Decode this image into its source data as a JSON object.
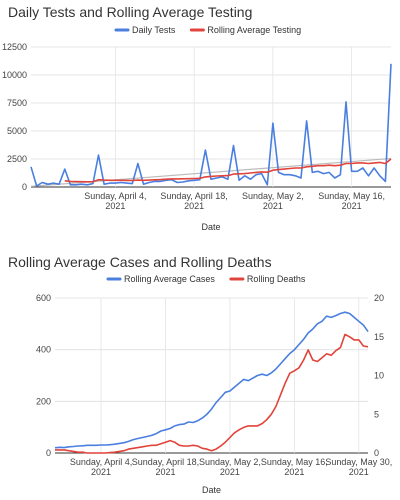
{
  "chart_data": [
    {
      "type": "line",
      "title": "Daily Tests and Rolling Average Testing",
      "xlabel": "Date",
      "ylabel": "",
      "ylim": [
        0,
        12500
      ],
      "yticks": [
        0,
        2500,
        5000,
        7500,
        10000,
        12500
      ],
      "ytick_labels": [
        "0",
        "2500",
        "5000",
        "7500",
        "10000",
        "12500"
      ],
      "x_start": "2021-03-20",
      "x_end": "2021-05-29",
      "xticks": [
        {
          "date": "2021-04-04",
          "label": "Sunday, April 4,",
          "label2": "2021"
        },
        {
          "date": "2021-04-18",
          "label": "Sunday, April 18,",
          "label2": "2021"
        },
        {
          "date": "2021-05-02",
          "label": "Sunday, May 2,",
          "label2": "2021"
        },
        {
          "date": "2021-05-16",
          "label": "Sunday, May 16,",
          "label2": "2021"
        }
      ],
      "legend_position": "top",
      "series": [
        {
          "name": "Daily Tests",
          "color": "#4a7fe0",
          "values": [
            1800,
            100,
            400,
            250,
            350,
            250,
            1600,
            200,
            200,
            250,
            200,
            300,
            2850,
            250,
            350,
            350,
            400,
            350,
            300,
            2100,
            250,
            400,
            500,
            500,
            600,
            650,
            400,
            450,
            550,
            600,
            650,
            3300,
            700,
            800,
            900,
            700,
            3700,
            600,
            1000,
            700,
            1100,
            1200,
            200,
            5700,
            1300,
            1100,
            1100,
            1000,
            800,
            5900,
            1300,
            1400,
            1200,
            1300,
            800,
            1100,
            7600,
            1400,
            1400,
            1700,
            1000,
            1700,
            1000,
            500,
            11000
          ]
        },
        {
          "name": "Rolling Average Testing",
          "color": "#e0443a",
          "values": [
            null,
            null,
            null,
            null,
            null,
            null,
            550,
            500,
            480,
            470,
            460,
            460,
            650,
            620,
            600,
            600,
            600,
            590,
            580,
            620,
            600,
            620,
            640,
            660,
            700,
            720,
            720,
            730,
            740,
            760,
            780,
            900,
            950,
            980,
            1000,
            1020,
            1150,
            1180,
            1200,
            1250,
            1300,
            1350,
            1320,
            1500,
            1550,
            1600,
            1650,
            1700,
            1700,
            1800,
            1850,
            1900,
            1900,
            1950,
            1900,
            1950,
            2100,
            2100,
            2150,
            2150,
            2100,
            2150,
            2200,
            2100,
            2500
          ]
        }
      ],
      "trend_color": "#bbbbbb"
    },
    {
      "type": "line",
      "title": "Rolling Average Cases and Rolling Deaths",
      "xlabel": "Date",
      "ylabel": "",
      "ylim": [
        0,
        600
      ],
      "yticks": [
        0,
        200,
        400,
        600
      ],
      "ytick_labels": [
        "0",
        "200",
        "400",
        "600"
      ],
      "y2lim": [
        0,
        20
      ],
      "y2ticks": [
        0,
        5,
        10,
        15,
        20
      ],
      "y2tick_labels": [
        "0",
        "5",
        "10",
        "15",
        "20"
      ],
      "x_start": "2021-03-25",
      "x_end": "2021-06-01",
      "xticks": [
        {
          "date": "2021-04-04",
          "label": "Sunday, April 4,",
          "label2": "2021"
        },
        {
          "date": "2021-04-18",
          "label": "Sunday, April 18,",
          "label2": "2021"
        },
        {
          "date": "2021-05-02",
          "label": "Sunday, May 2,",
          "label2": "2021"
        },
        {
          "date": "2021-05-16",
          "label": "Sunday, May 16,",
          "label2": "2021"
        },
        {
          "date": "2021-05-30",
          "label": "Sunday, May 30,",
          "label2": "2021"
        }
      ],
      "legend_position": "top",
      "series": [
        {
          "name": "Rolling Average Cases",
          "color": "#4a7fe0",
          "axis": "left",
          "values": [
            20,
            22,
            21,
            24,
            25,
            27,
            28,
            30,
            30,
            30,
            31,
            31,
            32,
            34,
            37,
            40,
            45,
            52,
            56,
            60,
            64,
            68,
            75,
            85,
            90,
            95,
            105,
            110,
            112,
            120,
            118,
            125,
            135,
            150,
            170,
            195,
            215,
            235,
            240,
            255,
            270,
            285,
            280,
            290,
            300,
            305,
            300,
            310,
            325,
            345,
            365,
            385,
            400,
            420,
            440,
            465,
            480,
            500,
            510,
            530,
            525,
            532,
            540,
            545,
            540,
            525,
            510,
            495,
            470
          ]
        },
        {
          "name": "Rolling Deaths",
          "color": "#e0443a",
          "axis": "right",
          "values": [
            0.4,
            0.4,
            0.4,
            0.3,
            0.2,
            0.1,
            0.1,
            0,
            0,
            0,
            0,
            0,
            0.05,
            0.1,
            0.2,
            0.3,
            0.5,
            0.6,
            0.7,
            0.8,
            0.9,
            1.0,
            1.0,
            1.2,
            1.4,
            1.6,
            1.4,
            1.0,
            0.9,
            0.9,
            1.0,
            0.9,
            0.6,
            0.5,
            0.3,
            0.5,
            0.9,
            1.4,
            2.0,
            2.6,
            3.0,
            3.3,
            3.5,
            3.5,
            3.5,
            3.8,
            4.3,
            5.0,
            6.0,
            7.5,
            9.0,
            10.3,
            10.6,
            11.0,
            12.0,
            13.3,
            12.0,
            11.8,
            12.3,
            12.8,
            12.6,
            13.2,
            13.6,
            15.3,
            15.0,
            14.6,
            14.6,
            13.8,
            13.7
          ]
        }
      ]
    }
  ]
}
